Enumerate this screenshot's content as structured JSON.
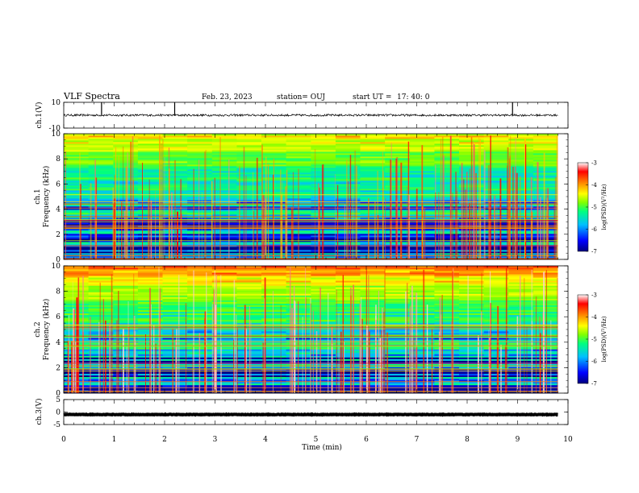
{
  "header": {
    "title": "VLF Spectra",
    "date": "Feb. 23, 2023",
    "station": "station= OUJ",
    "start_label": "start  UT  =",
    "start_time": "17: 40: 0"
  },
  "chart_data": [
    {
      "type": "line",
      "panel": "ch1-waveform",
      "ylabel": "ch.1(V)",
      "ylim": [
        -10,
        10
      ],
      "yticks": [
        "10",
        "-10"
      ],
      "series": [
        {
          "baseline": 0,
          "noise_amplitude": 0.8,
          "spikes_at_min": [
            0.75,
            2.2,
            8.9
          ]
        }
      ]
    },
    {
      "type": "heatmap",
      "panel": "ch1-spectrogram",
      "ylabel": "ch.1\nFrequency  (kHz)",
      "ylim": [
        0,
        10
      ],
      "yticks": [
        "0",
        "2",
        "4",
        "6",
        "8",
        "10"
      ],
      "colorbar": {
        "label": "log(PSD)(V²/Hz)",
        "range": [
          -7,
          -3
        ],
        "ticks": [
          "-3",
          "-4",
          "-5",
          "-6",
          "-7"
        ]
      },
      "description_values": {
        "log_psd_low_freq": -6.5,
        "log_psd_high_freq": -4.5
      }
    },
    {
      "type": "heatmap",
      "panel": "ch2-spectrogram",
      "ylabel": "ch.2\nFrequency  (kHz)",
      "ylim": [
        0,
        10
      ],
      "yticks": [
        "0",
        "2",
        "4",
        "6",
        "8",
        "10"
      ],
      "colorbar": {
        "label": "log(PSD)(V²/Hz)",
        "range": [
          -7,
          -3
        ],
        "ticks": [
          "-3",
          "-4",
          "-5",
          "-6",
          "-7"
        ]
      },
      "description_values": {
        "log_psd_low_freq": -6.5,
        "log_psd_high_freq": -4.0
      }
    },
    {
      "type": "line",
      "panel": "ch3-waveform",
      "ylabel": "ch.3(V)",
      "ylim": [
        -5,
        5
      ],
      "yticks": [
        "5",
        "0",
        "-5"
      ],
      "series": [
        {
          "baseline": -1,
          "noise_amplitude": 0.1
        }
      ]
    }
  ],
  "xaxis": {
    "label": "Time  (min)",
    "xlim": [
      0,
      10
    ],
    "ticks": [
      "0",
      "1",
      "2",
      "3",
      "4",
      "5",
      "6",
      "7",
      "8",
      "9",
      "10"
    ],
    "data_end_min": 9.8
  },
  "colors": {
    "axis": "#000000",
    "trace": "#000000",
    "colormap": [
      "#00007f",
      "#0000ff",
      "#00bfff",
      "#00ff7f",
      "#7fff00",
      "#ffff00",
      "#ff7f00",
      "#ff0000",
      "#ffd0d0"
    ]
  }
}
